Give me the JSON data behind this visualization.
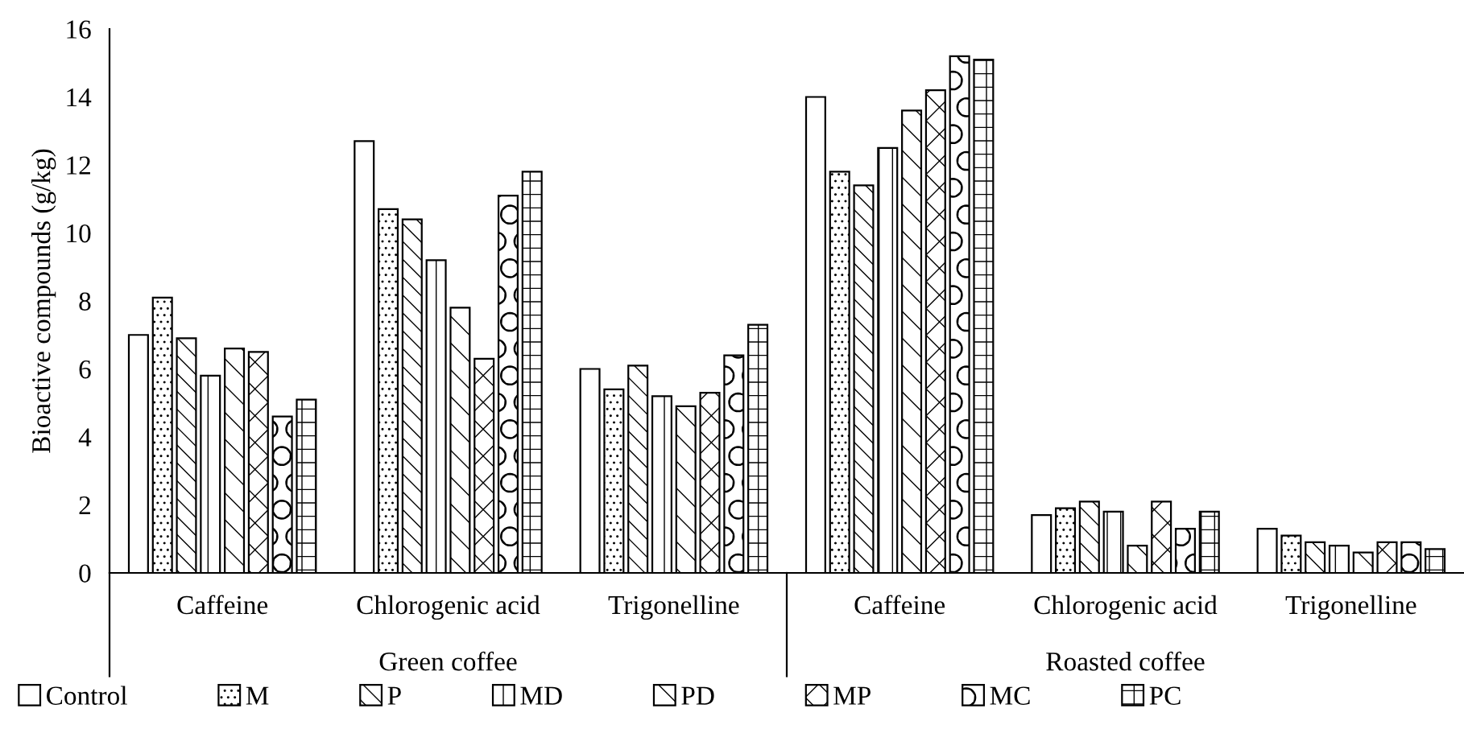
{
  "chart_data": {
    "type": "bar",
    "ylabel": "Bioactive compounds (g/kg)",
    "categories": [
      "Caffeine",
      "Chlorogenic acid",
      "Trigonelline",
      "Caffeine",
      "Chlorogenic acid",
      "Trigonelline"
    ],
    "annotations": [
      "Green coffee",
      "Roasted coffee"
    ],
    "series": [
      {
        "name": "Control",
        "color": "#ffffff",
        "values": [
          7.0,
          12.7,
          6.0,
          14.0,
          1.7,
          1.3
        ]
      },
      {
        "name": "M",
        "color": "#000000",
        "values": [
          8.1,
          10.7,
          5.4,
          11.8,
          1.9,
          1.1
        ]
      },
      {
        "name": "P",
        "color": "#000000",
        "values": [
          6.9,
          10.4,
          6.1,
          11.4,
          2.1,
          0.9
        ]
      },
      {
        "name": "MD",
        "color": "#000000",
        "values": [
          5.8,
          9.2,
          5.2,
          12.5,
          1.8,
          0.8
        ]
      },
      {
        "name": "PD",
        "color": "#000000",
        "values": [
          6.6,
          7.8,
          4.9,
          13.6,
          0.8,
          0.6
        ]
      },
      {
        "name": "MP",
        "color": "#000000",
        "values": [
          6.5,
          6.3,
          5.3,
          14.2,
          2.1,
          0.9
        ]
      },
      {
        "name": "MC",
        "color": "#000000",
        "values": [
          4.6,
          11.1,
          6.4,
          15.2,
          1.3,
          0.9
        ]
      },
      {
        "name": "PC",
        "color": "#000000",
        "values": [
          5.1,
          11.8,
          7.3,
          15.1,
          1.8,
          0.7
        ]
      }
    ],
    "ylim": [
      0,
      16
    ],
    "yticks": [
      0,
      2,
      4,
      6,
      8,
      10,
      12,
      14,
      16
    ],
    "grid": false,
    "legend": "bottom"
  }
}
